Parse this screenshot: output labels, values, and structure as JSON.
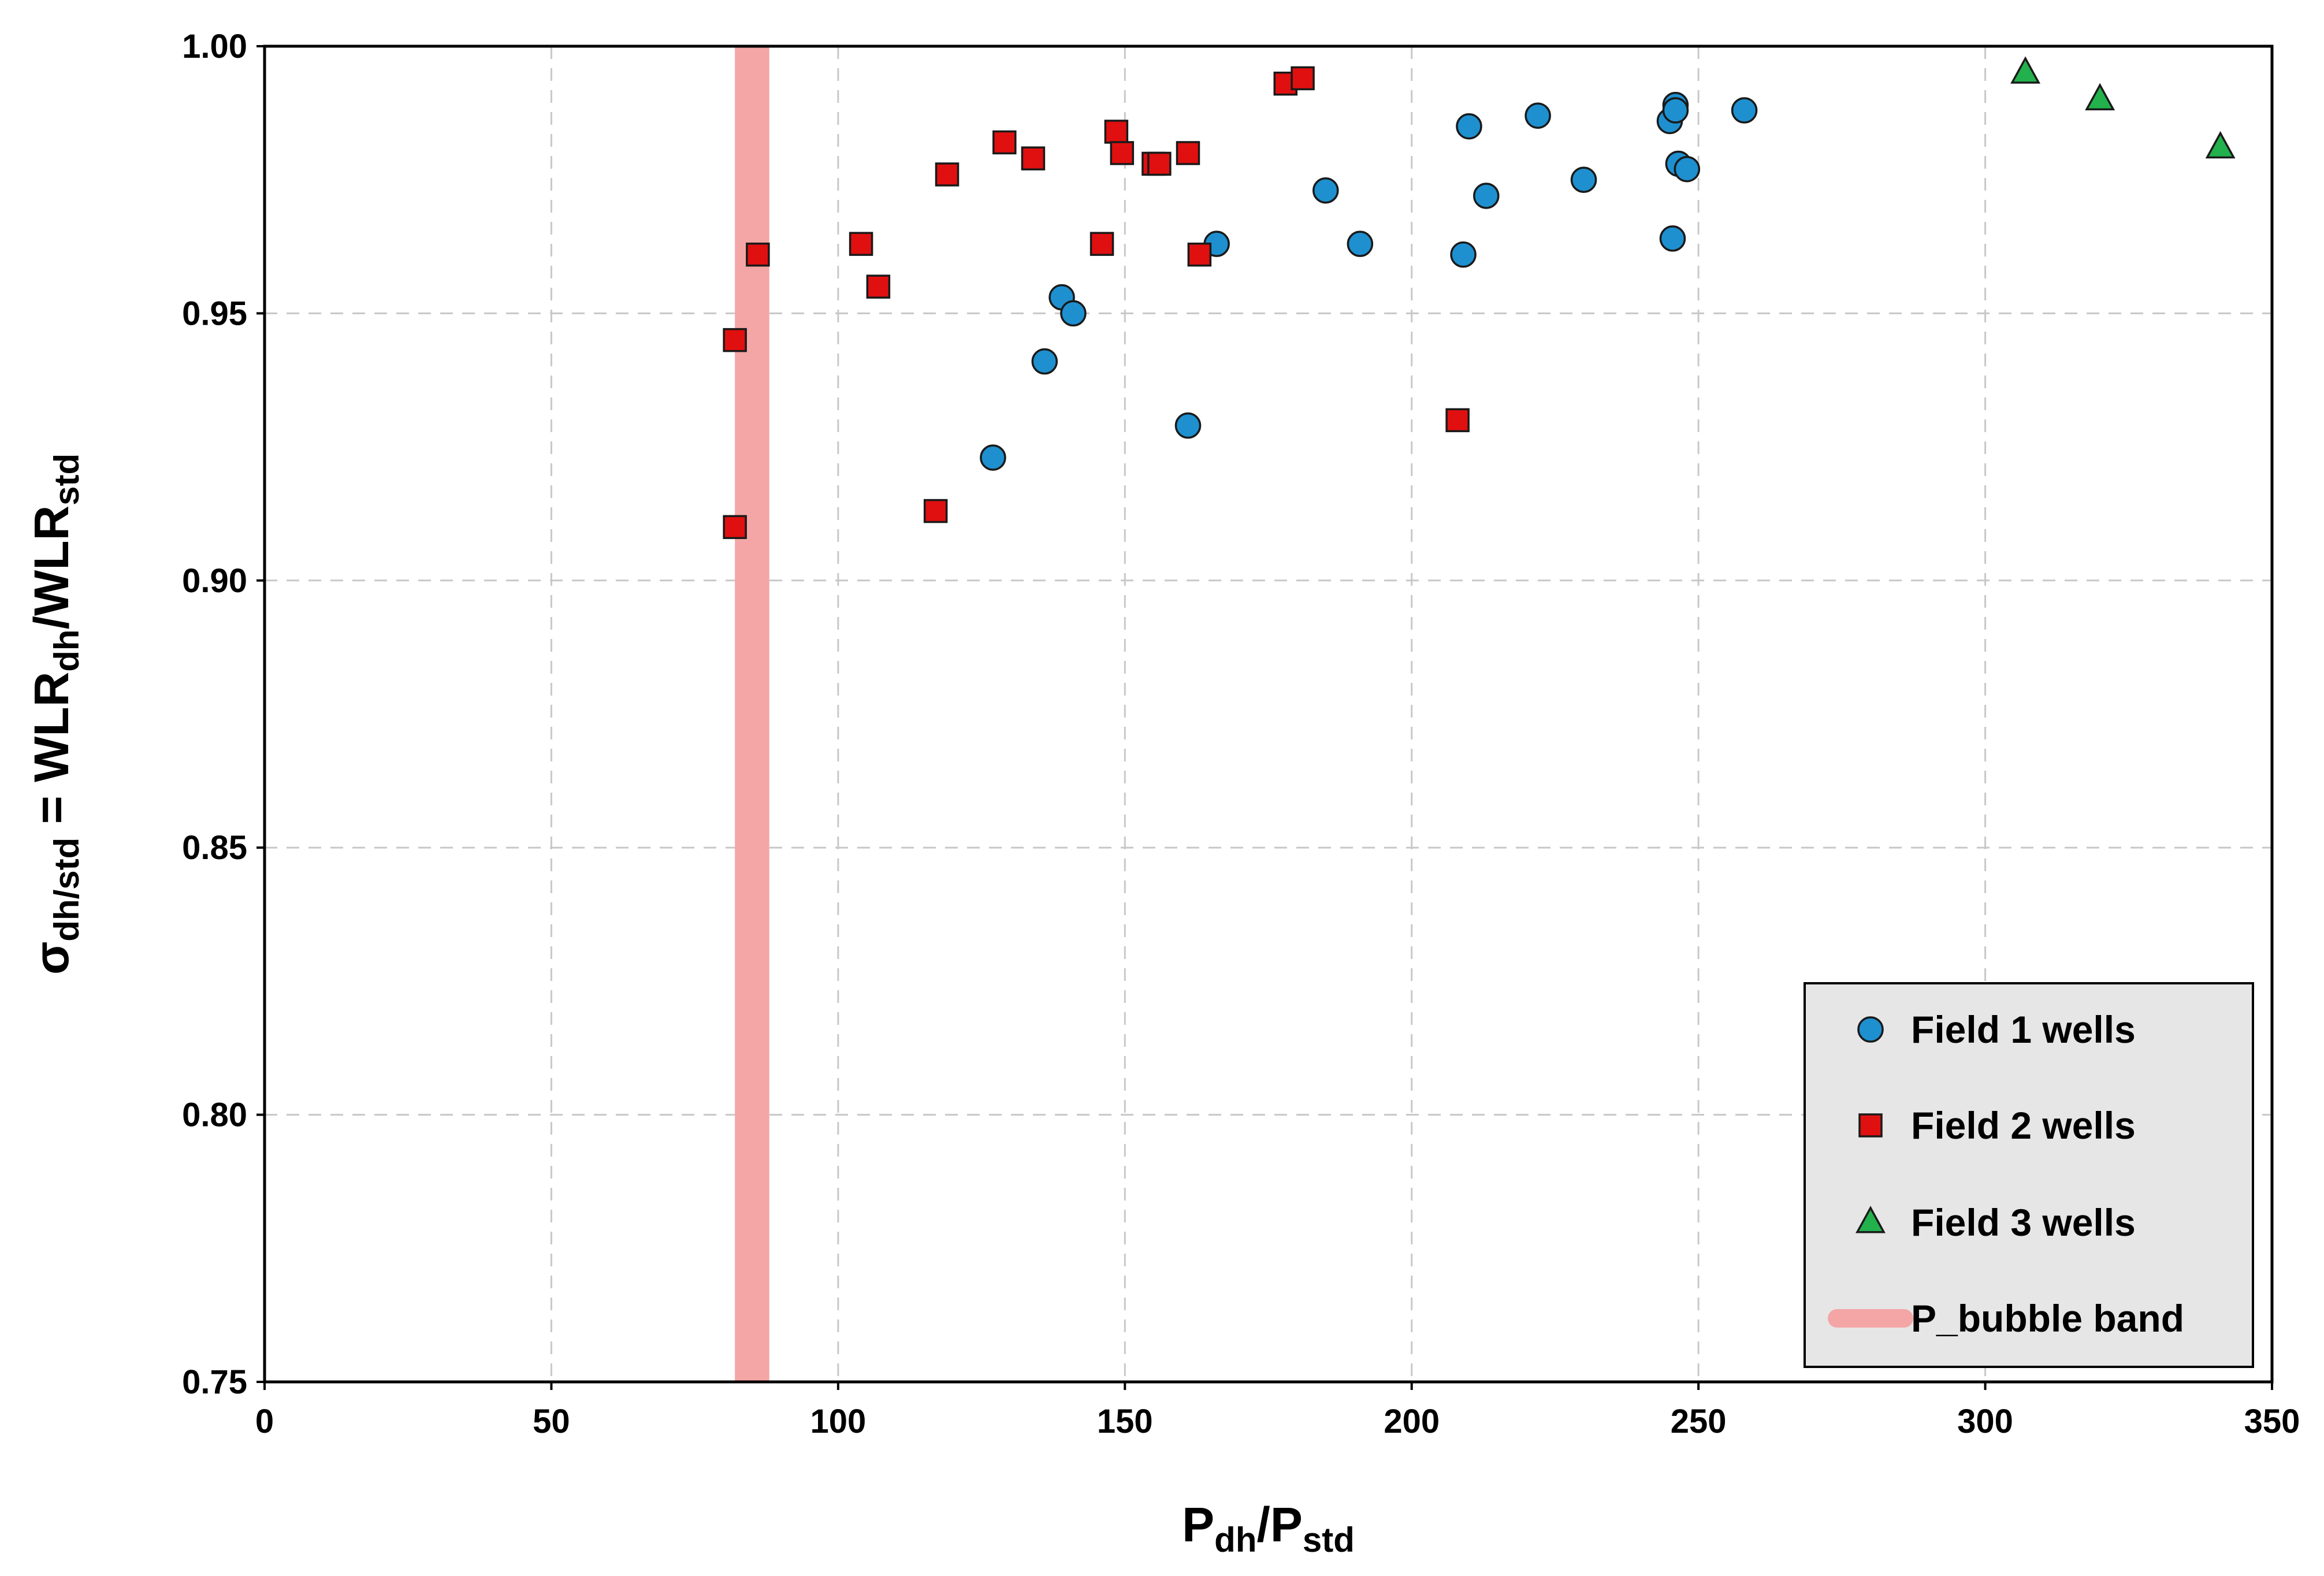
{
  "chart_data": {
    "type": "scatter",
    "title": "",
    "xlabel": {
      "main": "P",
      "sub1": "dh",
      "sep": "/P",
      "sub2": "std"
    },
    "ylabel": {
      "sym": "σ",
      "sub1": "dh/std",
      "eq": " = WLR",
      "sub2": "dh",
      "sep": "/WLR",
      "sub3": "std"
    },
    "xlim": [
      0,
      350
    ],
    "ylim": [
      0.75,
      1.0
    ],
    "xticks": [
      0,
      50,
      100,
      150,
      200,
      250,
      300,
      350
    ],
    "yticks": [
      0.75,
      0.8,
      0.85,
      0.9,
      0.95,
      1.0
    ],
    "xtick_labels": [
      "0",
      "50",
      "100",
      "150",
      "200",
      "250",
      "300",
      "350"
    ],
    "ytick_labels": [
      "0.75",
      "0.80",
      "0.85",
      "0.90",
      "0.95",
      "1.00"
    ],
    "grid": true,
    "legend_position": "bottom-right",
    "band": {
      "name": "P_bubble band",
      "x_range": [
        82,
        88
      ],
      "color": "#f4a6a6"
    },
    "series": [
      {
        "name": "Field 1 wells",
        "marker": "circle",
        "color": "#1e90d0",
        "points": [
          [
            127,
            0.923
          ],
          [
            136,
            0.941
          ],
          [
            139,
            0.953
          ],
          [
            141,
            0.95
          ],
          [
            161,
            0.929
          ],
          [
            166,
            0.963
          ],
          [
            185,
            0.973
          ],
          [
            191,
            0.963
          ],
          [
            209,
            0.961
          ],
          [
            210,
            0.985
          ],
          [
            213,
            0.972
          ],
          [
            222,
            0.987
          ],
          [
            230,
            0.975
          ],
          [
            245,
            0.986
          ],
          [
            245.5,
            0.964
          ],
          [
            246,
            0.989
          ],
          [
            246,
            0.988
          ],
          [
            246.5,
            0.978
          ],
          [
            248,
            0.977
          ],
          [
            258,
            0.988
          ]
        ]
      },
      {
        "name": "Field 2 wells",
        "marker": "square",
        "color": "#e01010",
        "points": [
          [
            82,
            0.945
          ],
          [
            82,
            0.91
          ],
          [
            86,
            0.961
          ],
          [
            104,
            0.963
          ],
          [
            107,
            0.955
          ],
          [
            117,
            0.913
          ],
          [
            119,
            0.976
          ],
          [
            129,
            0.982
          ],
          [
            134,
            0.979
          ],
          [
            146,
            0.963
          ],
          [
            148.5,
            0.984
          ],
          [
            149.5,
            0.98
          ],
          [
            155,
            0.978
          ],
          [
            156,
            0.978
          ],
          [
            161,
            0.98
          ],
          [
            163,
            0.961
          ],
          [
            178,
            0.993
          ],
          [
            181,
            0.994
          ],
          [
            208,
            0.93
          ]
        ]
      },
      {
        "name": "Field 3 wells",
        "marker": "triangle",
        "color": "#22b14c",
        "points": [
          [
            307,
            0.995
          ],
          [
            320,
            0.99
          ],
          [
            341,
            0.981
          ]
        ]
      }
    ]
  }
}
